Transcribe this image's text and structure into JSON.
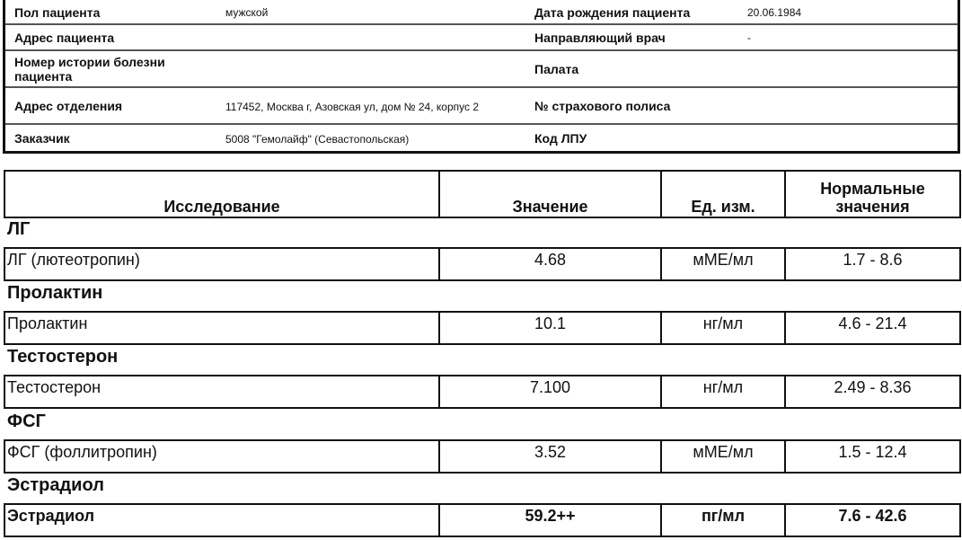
{
  "patient_info": [
    {
      "label": "Пол пациента",
      "value": "мужской",
      "label2": "Дата рождения пациента",
      "value2": "20.06.1984"
    },
    {
      "label": "Адрес пациента",
      "value": "",
      "label2": "Направляющий врач",
      "value2": "-"
    },
    {
      "label": "Номер истории болезни пациента",
      "value": "",
      "label2": "Палата",
      "value2": ""
    },
    {
      "label": "Адрес отделения",
      "value": "117452, Москва г, Азовская ул, дом № 24, корпус 2",
      "label2": "№ страхового полиса",
      "value2": ""
    },
    {
      "label": "Заказчик",
      "value": "5008 \"Гемолайф\" (Севастопольская)",
      "label2": "Код ЛПУ",
      "value2": ""
    }
  ],
  "results": {
    "headers": {
      "test": "Исследование",
      "value": "Значение",
      "unit": "Ед. изм.",
      "normal": "Нормальные значения"
    },
    "groups": [
      {
        "title": "ЛГ",
        "test": "ЛГ (лютеотропин)",
        "value": "4.68",
        "unit": "мМЕ/мл",
        "normal": "1.7 - 8.6"
      },
      {
        "title": "Пролактин",
        "test": "Пролактин",
        "value": "10.1",
        "unit": "нг/мл",
        "normal": "4.6 - 21.4"
      },
      {
        "title": "Тестостерон",
        "test": "Тестостерон",
        "value": "7.100",
        "unit": "нг/мл",
        "normal": "2.49 - 8.36"
      },
      {
        "title": "ФСГ",
        "test": "ФСГ (фоллитропин)",
        "value": "3.52",
        "unit": "мМЕ/мл",
        "normal": "1.5 - 12.4"
      },
      {
        "title": "Эстрадиол",
        "test": "Эстрадиол",
        "value": "59.2++",
        "unit": "пг/мл",
        "normal": "7.6 - 42.6",
        "abnormal": true
      }
    ]
  }
}
